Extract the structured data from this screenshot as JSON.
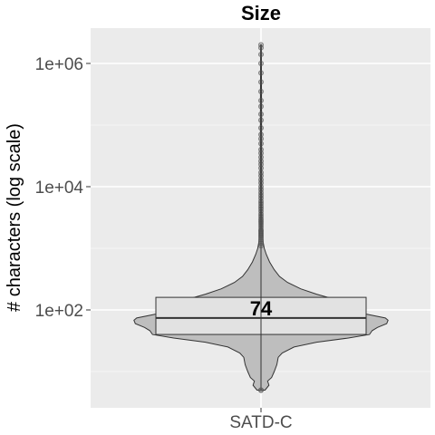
{
  "chart_data": {
    "type": "violin",
    "title": "Size",
    "xlabel": "",
    "ylabel": "# characters (log scale)",
    "y_scale": "log10",
    "ylim": [
      3,
      3000000
    ],
    "yticks": [
      {
        "value": 100,
        "label": "1e+02"
      },
      {
        "value": 10000,
        "label": "1e+04"
      },
      {
        "value": 1000000,
        "label": "1e+06"
      }
    ],
    "categories": [
      "SATD-C"
    ],
    "series": [
      {
        "category": "SATD-C",
        "min": 5,
        "q1": 40,
        "median": 74,
        "q3": 160,
        "whisker_high": 1000,
        "max": 2000000,
        "median_label": "74",
        "violin_density": [
          [
            5,
            0.03
          ],
          [
            6,
            0.06
          ],
          [
            7,
            0.05
          ],
          [
            8,
            0.08
          ],
          [
            10,
            0.1
          ],
          [
            13,
            0.12
          ],
          [
            17,
            0.13
          ],
          [
            20,
            0.16
          ],
          [
            25,
            0.25
          ],
          [
            30,
            0.42
          ],
          [
            35,
            0.66
          ],
          [
            40,
            0.82
          ],
          [
            46,
            0.84
          ],
          [
            52,
            0.88
          ],
          [
            60,
            0.95
          ],
          [
            68,
            0.96
          ],
          [
            74,
            0.94
          ],
          [
            85,
            0.8
          ],
          [
            100,
            0.72
          ],
          [
            120,
            0.64
          ],
          [
            150,
            0.55
          ],
          [
            180,
            0.42
          ],
          [
            220,
            0.3
          ],
          [
            280,
            0.2
          ],
          [
            350,
            0.14
          ],
          [
            450,
            0.1
          ],
          [
            600,
            0.065
          ],
          [
            800,
            0.04
          ],
          [
            1000,
            0.025
          ],
          [
            1300,
            0.015
          ],
          [
            2000,
            0.008
          ],
          [
            5000,
            0.006
          ],
          [
            20000,
            0.005
          ],
          [
            200000,
            0.004
          ],
          [
            2000000,
            0.003
          ]
        ],
        "outliers": [
          1100,
          1200,
          1300,
          1400,
          1500,
          1600,
          1700,
          1800,
          1900,
          2000,
          2200,
          2400,
          2600,
          2800,
          3000,
          3300,
          3600,
          4000,
          4400,
          4800,
          5300,
          5800,
          6500,
          7200,
          8000,
          9000,
          10000,
          11500,
          13000,
          15000,
          17000,
          20000,
          23000,
          26000,
          30000,
          35000,
          40000,
          50000,
          60000,
          70000,
          90000,
          120000,
          150000,
          200000,
          250000,
          350000,
          500000,
          700000,
          1000000,
          1400000,
          1800000,
          2000000
        ]
      }
    ],
    "grid": true,
    "colors": {
      "panel": "#ebebeb",
      "grid_major": "#ffffff",
      "violin_fill": "#bebebe",
      "violin_stroke": "#333333",
      "box_fill": "#e2e2e2",
      "box_stroke": "#333333",
      "outlier": "#555555"
    }
  }
}
